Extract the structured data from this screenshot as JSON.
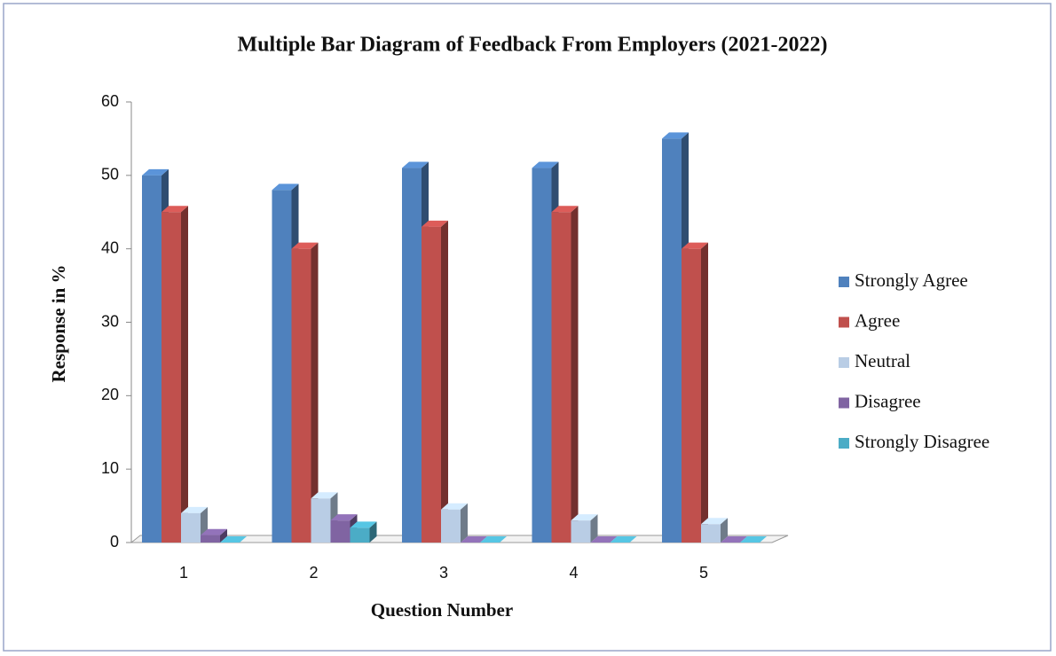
{
  "chart_data": {
    "type": "bar3d",
    "title": "Multiple Bar Diagram of Feedback From Employers (2021-2022)",
    "x_label": "Question Number",
    "y_label": "Response in %",
    "categories": [
      "1",
      "2",
      "3",
      "4",
      "5"
    ],
    "series": [
      {
        "name": "Strongly Agree",
        "color": "#4f81bd",
        "values": [
          50,
          48,
          51,
          51,
          55
        ]
      },
      {
        "name": "Agree",
        "color": "#c0504d",
        "values": [
          45,
          40,
          43,
          45,
          40
        ]
      },
      {
        "name": "Neutral",
        "color": "#b9cde5",
        "values": [
          4,
          6,
          4.5,
          3,
          2.5
        ]
      },
      {
        "name": "Disagree",
        "color": "#8064a2",
        "values": [
          1,
          3,
          0,
          0,
          0
        ]
      },
      {
        "name": "Strongly Disagree",
        "color": "#4bacc6",
        "values": [
          0,
          2,
          0,
          0,
          0
        ]
      }
    ],
    "ylim": [
      0,
      60
    ],
    "yticks": [
      0,
      10,
      20,
      30,
      40,
      50,
      60
    ],
    "grid": false,
    "legend": "right"
  }
}
